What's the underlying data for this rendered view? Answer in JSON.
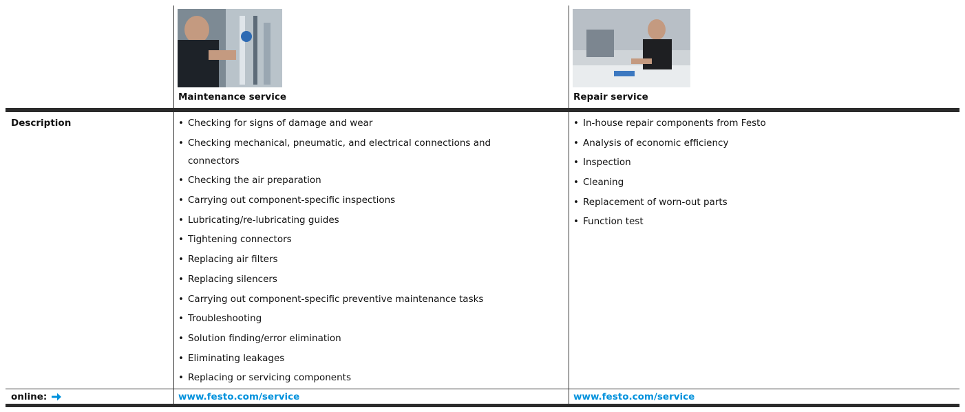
{
  "table": {
    "header": [
      {
        "title": "Maintenance service"
      },
      {
        "title": "Repair service"
      }
    ],
    "description": {
      "label": "Description",
      "columns": [
        [
          "Checking for signs of damage and wear",
          "Checking mechanical, pneumatic, and electrical connections and connectors",
          "Checking the air preparation",
          "Carrying out component-specific inspections",
          "Lubricating/re-lubricating guides",
          "Tightening connectors",
          "Replacing air filters",
          "Replacing silencers",
          "Carrying out component-specific preventive maintenance tasks",
          "Troubleshooting",
          "Solution finding/error elimination",
          "Eliminating leakages",
          "Replacing or servicing components"
        ],
        [
          "In-house repair components from Festo",
          "Analysis of economic efficiency",
          "Inspection",
          "Cleaning",
          "Replacement of worn-out parts",
          "Function test"
        ]
      ]
    },
    "online": {
      "label": "online:",
      "links": [
        "www.festo.com/service",
        "www.festo.com/service"
      ]
    }
  }
}
